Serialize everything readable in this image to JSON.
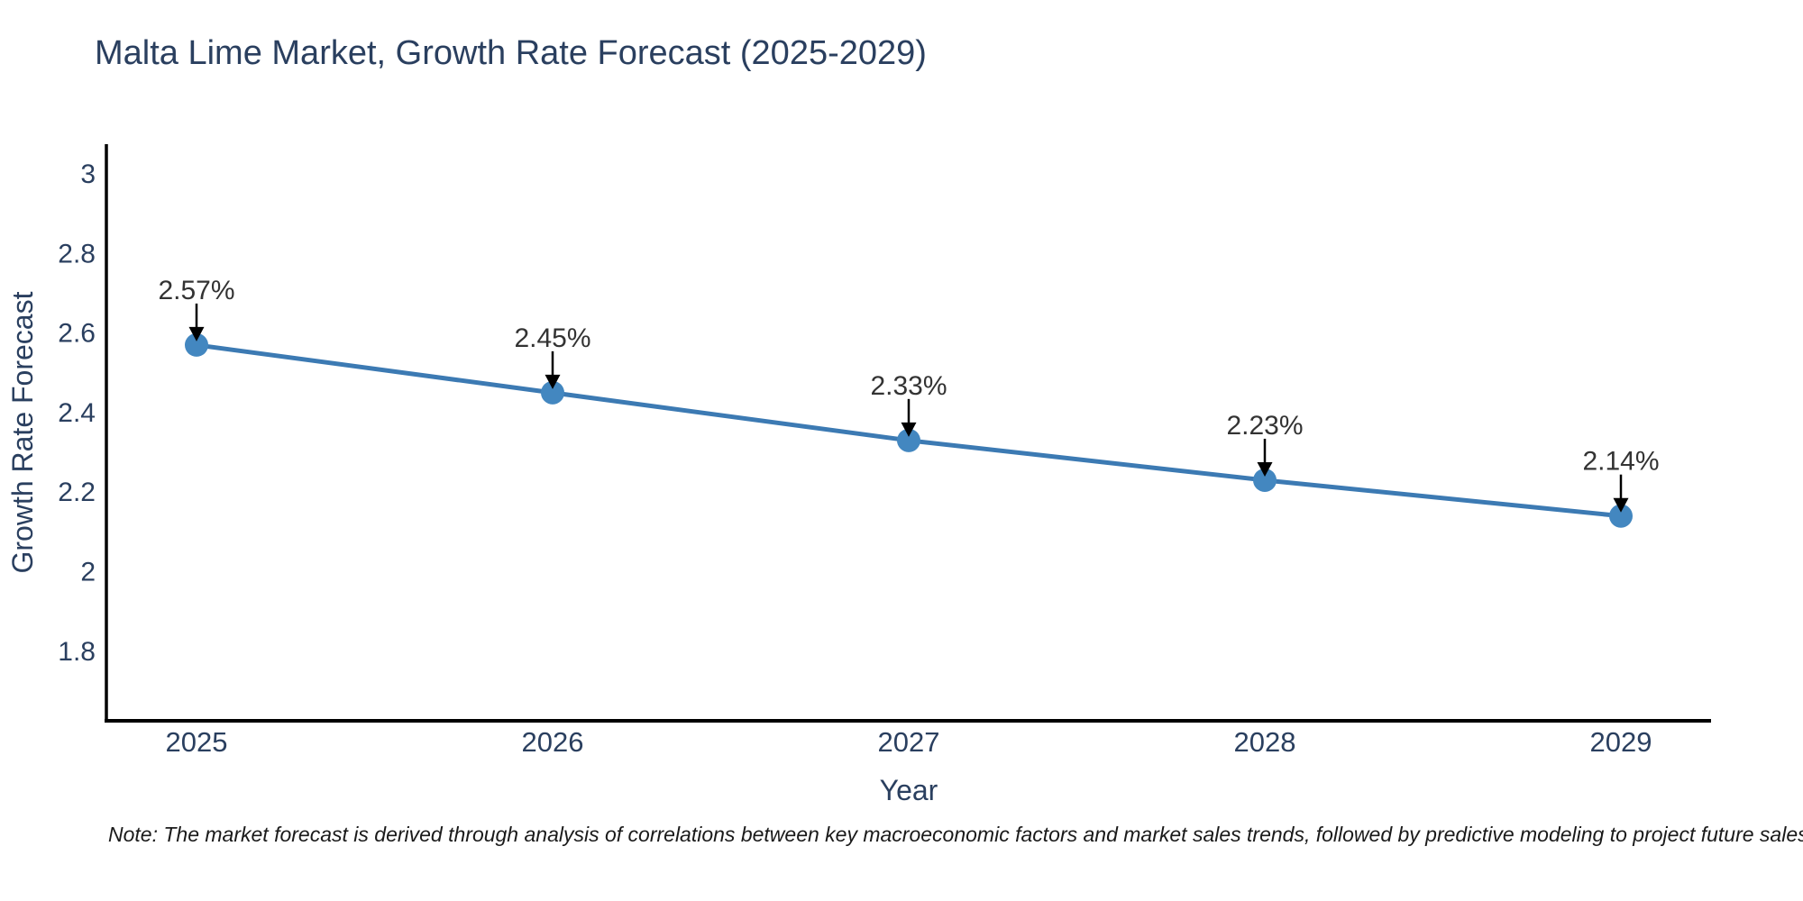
{
  "title": "Malta Lime Market, Growth Rate Forecast (2025-2029)",
  "note": "Note: The market forecast is derived through analysis of correlations between key macroeconomic factors and market sales trends, followed by predictive modeling to project future sales",
  "chart_data": {
    "type": "line",
    "title": "Malta Lime Market, Growth Rate Forecast (2025-2029)",
    "xlabel": "Year",
    "ylabel": "Growth Rate Forecast",
    "categories": [
      "2025",
      "2026",
      "2027",
      "2028",
      "2029"
    ],
    "series": [
      {
        "name": "Growth Rate Forecast",
        "values": [
          2.57,
          2.45,
          2.33,
          2.23,
          2.14
        ]
      }
    ],
    "labels": [
      "2.57%",
      "2.45%",
      "2.33%",
      "2.23%",
      "2.14%"
    ],
    "yticks": [
      3,
      2.8,
      2.6,
      2.4,
      2.2,
      2,
      1.8
    ],
    "ytick_labels": [
      "3",
      "2.8",
      "2.6",
      "2.4",
      "2.2",
      "2",
      "1.8"
    ],
    "ylim": [
      1.625,
      3.075
    ],
    "grid": false,
    "legend_position": "none",
    "marker_style": "circle",
    "annotation_arrows": true,
    "colors": {
      "text": "#2a3f5f",
      "axis": "#000000",
      "line": "#3c7ab3",
      "marker": "#4387c0",
      "annotation": "#333333",
      "arrow": "#000000",
      "note": "#1a1a1a",
      "background": "#ffffff"
    }
  }
}
